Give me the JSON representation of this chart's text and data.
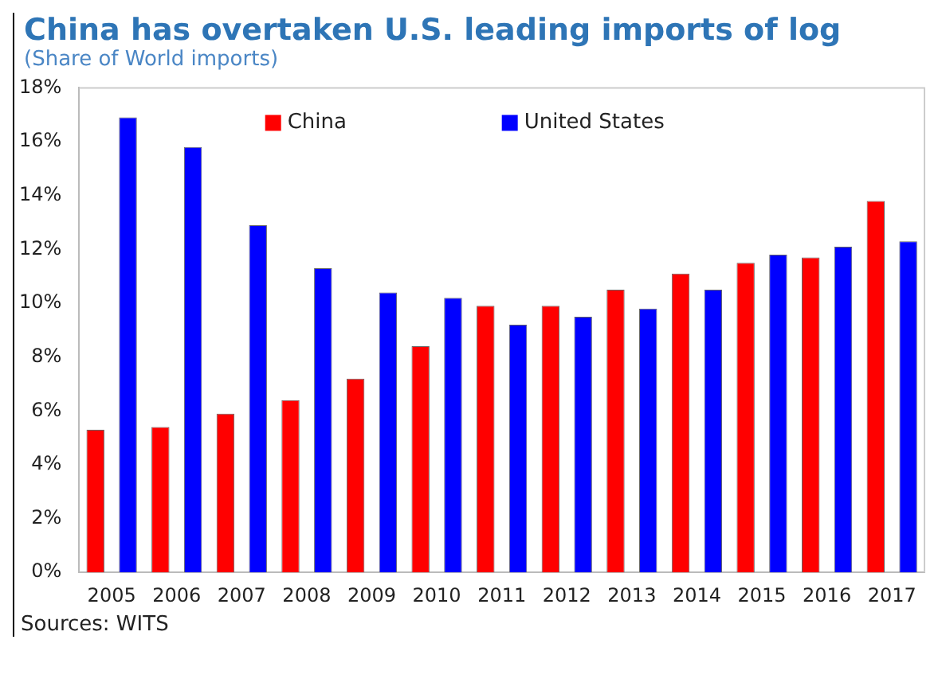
{
  "chart_data": {
    "type": "bar",
    "title": "China has overtaken U.S. leading imports of log",
    "subtitle": "(Share of World imports)",
    "categories": [
      "2005",
      "2006",
      "2007",
      "2008",
      "2009",
      "2010",
      "2011",
      "2012",
      "2013",
      "2014",
      "2015",
      "2016",
      "2017"
    ],
    "series": [
      {
        "name": "China",
        "color": "#ff0000",
        "values": [
          5.3,
          5.4,
          5.9,
          6.4,
          7.2,
          8.4,
          9.9,
          9.9,
          10.5,
          11.1,
          11.5,
          11.7,
          13.8
        ]
      },
      {
        "name": "United States",
        "color": "#0000ff",
        "values": [
          16.9,
          15.8,
          12.9,
          11.3,
          10.4,
          10.2,
          9.2,
          9.5,
          9.8,
          10.5,
          11.8,
          12.1,
          12.3
        ]
      }
    ],
    "ylim": [
      0,
      18
    ],
    "yticks": [
      {
        "value": 0,
        "label": "0%"
      },
      {
        "value": 2,
        "label": "2%"
      },
      {
        "value": 4,
        "label": "4%"
      },
      {
        "value": 6,
        "label": "6%"
      },
      {
        "value": 8,
        "label": "8%"
      },
      {
        "value": 10,
        "label": "10%"
      },
      {
        "value": 12,
        "label": "12%"
      },
      {
        "value": 14,
        "label": "14%"
      },
      {
        "value": 16,
        "label": "16%"
      },
      {
        "value": 18,
        "label": "18%"
      }
    ],
    "grid": false,
    "legend": "top",
    "annotations": [
      "Sources: WITS"
    ]
  }
}
